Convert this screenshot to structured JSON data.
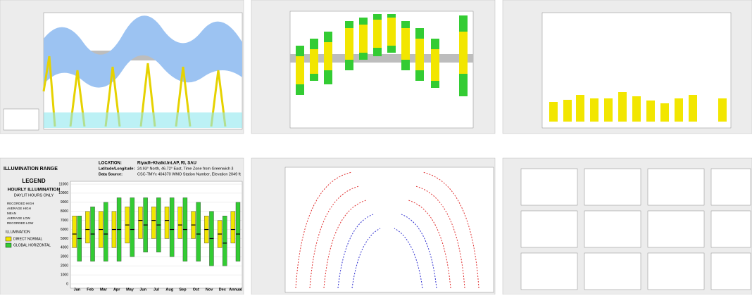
{
  "header": {
    "title": "ILLUMINATION RANGE",
    "location_label": "LOCATION:",
    "location": "Riyadh-Khalid.Int.AP, RI, SAU",
    "latlon_label": "Latitude/Longitude:",
    "latlon": "24.93° North, 46.72° East, Time Zone from Greenwich 3",
    "source_label": "Data Source:",
    "source": "CSC-TMYx 404370 WMO Station Number, Elevation 2049 ft"
  },
  "legend": {
    "title": "LEGEND",
    "subtitle1": "HOURLY ILLUMINATION",
    "subtitle2": "DAYLIT HOURS ONLY",
    "items": [
      "RECORDED HIGH",
      "AVERAGE HIGH",
      "MEAN",
      "AVERAGE LOW",
      "RECORDED LOW"
    ],
    "series_title": "ILLUMINATION"
  },
  "chart_data": {
    "type": "range_bar",
    "categories": [
      "Jan",
      "Feb",
      "Mar",
      "Apr",
      "May",
      "Jun",
      "Jul",
      "Aug",
      "Sep",
      "Oct",
      "Nov",
      "Dec",
      "Annual"
    ],
    "series": [
      {
        "name": "DIRECT NORMAL",
        "color": "#f2e600",
        "low": [
          4000,
          4500,
          4000,
          4000,
          4500,
          5000,
          5000,
          5000,
          5000,
          5000,
          4500,
          4000,
          4500
        ],
        "high": [
          7500,
          8000,
          8000,
          8000,
          8500,
          8500,
          8500,
          8500,
          8500,
          8000,
          7500,
          7000,
          8000
        ],
        "mean": [
          5500,
          6000,
          6000,
          6000,
          6500,
          7000,
          7000,
          7000,
          6500,
          6500,
          6000,
          5500,
          6000
        ]
      },
      {
        "name": "GLOBAL HORIZONTAL",
        "color": "#33cc33",
        "low": [
          2500,
          2500,
          2500,
          2500,
          3000,
          3500,
          3500,
          3000,
          2500,
          2500,
          2000,
          2000,
          2500
        ],
        "high": [
          7500,
          8500,
          9000,
          9500,
          9500,
          9500,
          9500,
          9500,
          9500,
          9000,
          8000,
          7500,
          9000
        ],
        "mean": [
          5000,
          5500,
          5500,
          6000,
          6000,
          6500,
          6500,
          6000,
          6000,
          5500,
          5000,
          4500,
          5500
        ]
      }
    ],
    "ylim": [
      0,
      11000
    ],
    "yticks": [
      0,
      1000,
      2000,
      3000,
      4000,
      5000,
      6000,
      7000,
      8000,
      9000,
      10000,
      11000
    ],
    "grid": true
  }
}
